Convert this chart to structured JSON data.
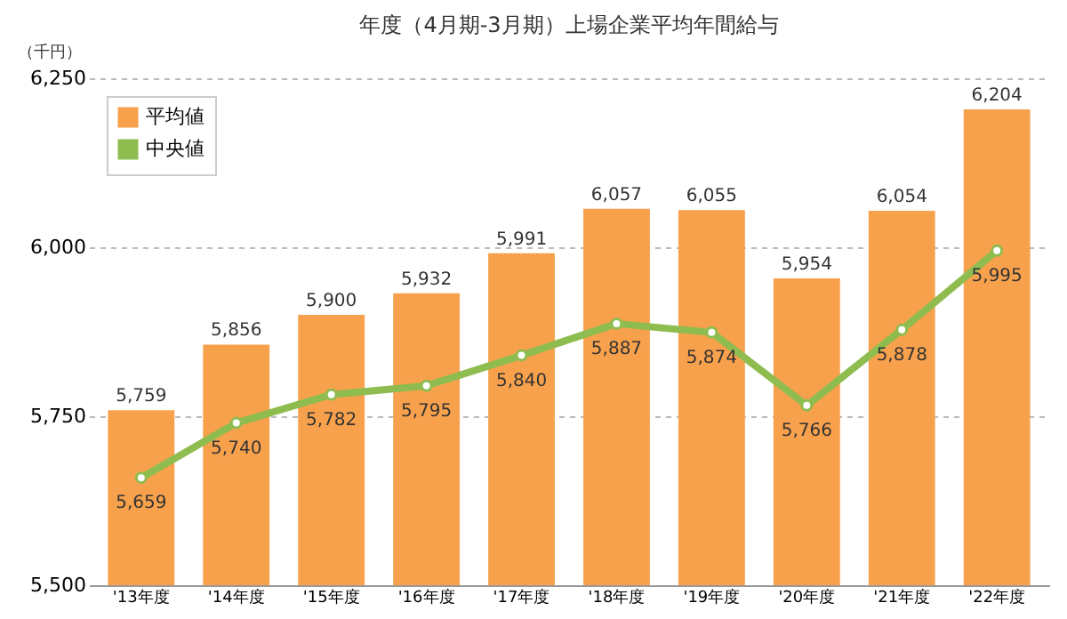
{
  "chart_data": {
    "type": "bar",
    "title": "年度（4月期-3月期）上場企業平均年間給与",
    "ylabel": "（千円）",
    "categories": [
      "'13年度",
      "'14年度",
      "'15年度",
      "'16年度",
      "'17年度",
      "'18年度",
      "'19年度",
      "'20年度",
      "'21年度",
      "'22年度"
    ],
    "series": [
      {
        "name": "平均値",
        "color": "#f8a14c",
        "values": [
          5759,
          5856,
          5900,
          5932,
          5991,
          6057,
          6055,
          5954,
          6054,
          6204
        ],
        "value_labels": [
          "5,759",
          "5,856",
          "5,900",
          "5,932",
          "5,991",
          "6,057",
          "6,055",
          "5,954",
          "6,054",
          "6,204"
        ]
      },
      {
        "name": "中央値",
        "type": "line",
        "color": "#8fbc4f",
        "marker": "circle",
        "values": [
          5659,
          5740,
          5782,
          5795,
          5840,
          5887,
          5874,
          5766,
          5878,
          5995
        ],
        "value_labels": [
          "5,659",
          "5,740",
          "5,782",
          "5,795",
          "5,840",
          "5,887",
          "5,874",
          "5,766",
          "5,878",
          "5,995"
        ]
      }
    ],
    "ylim": [
      5500,
      6250
    ],
    "yticks": [
      {
        "value": 5500,
        "label": "5,500"
      },
      {
        "value": 5750,
        "label": "5,750"
      },
      {
        "value": 6000,
        "label": "6,000"
      },
      {
        "value": 6250,
        "label": "6,250"
      }
    ],
    "grid": "y",
    "legend": "top left"
  }
}
